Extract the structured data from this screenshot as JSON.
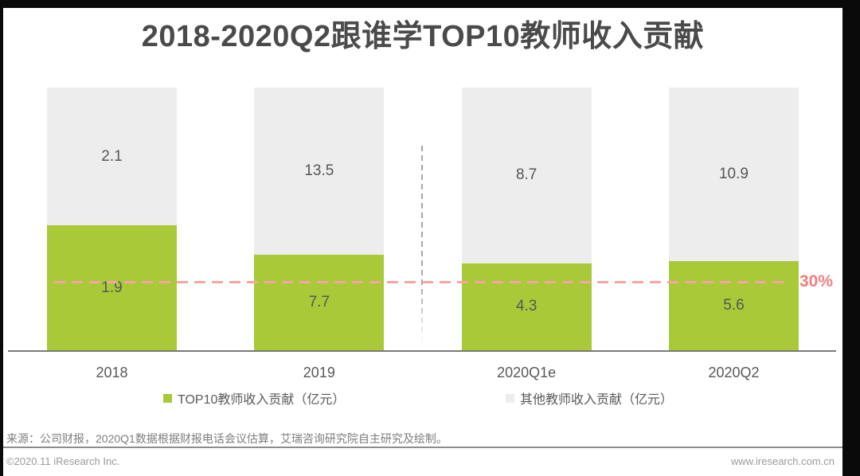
{
  "title": "2018-2020Q2跟谁学TOP10教师收入贡献",
  "chart_data": {
    "type": "bar",
    "subtype": "stacked-100-percent",
    "title": "2018-2020Q2跟谁学TOP10教师收入贡献",
    "categories": [
      "2018",
      "2019",
      "2020Q1e",
      "2020Q2"
    ],
    "series": [
      {
        "name": "TOP10教师收入贡献（亿元）",
        "color": "#a9c938",
        "values": [
          1.9,
          7.7,
          4.3,
          5.6
        ]
      },
      {
        "name": "其他教师收入贡献（亿元）",
        "color": "#ededed",
        "values": [
          2.1,
          13.5,
          8.7,
          10.9
        ]
      }
    ],
    "value_labels_shown": true,
    "threshold_line": {
      "label": "30%",
      "value_pct": 30,
      "rendered_pct_from_bottom": 26.4,
      "style": "dashed",
      "line_color": "#f3a6a6",
      "label_color": "#f07e7e"
    },
    "separator_between": [
      "2019",
      "2020Q1e"
    ],
    "legend_position": "bottom",
    "axis_color": "#7a7a7a",
    "grid": false,
    "xlabel": "",
    "ylabel": ""
  },
  "footer": {
    "source": "来源：公司财报，2020Q1数据根据财报电话会议估算，艾瑞咨询研究院自主研究及绘制。",
    "copyright": "©2020.11 iResearch Inc.",
    "website": "www.iresearch.com.cn"
  }
}
